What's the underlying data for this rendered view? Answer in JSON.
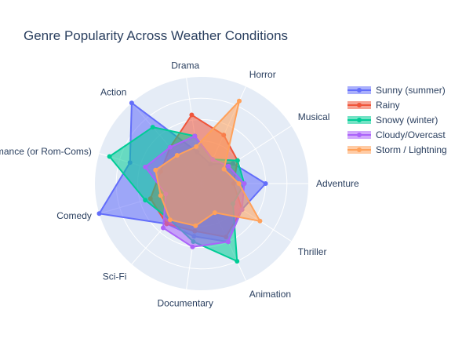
{
  "chart_data": {
    "type": "radar",
    "title": "Genre Popularity Across Weather Conditions",
    "categories": [
      "Adventure",
      "Musical",
      "Horror",
      "Drama",
      "Action",
      "Romance (or Rom-Coms)",
      "Comedy",
      "Sci-Fi",
      "Documentary",
      "Animation",
      "Thriller"
    ],
    "radial_range": [
      0,
      100
    ],
    "grid": true,
    "legend_position": "top-right",
    "series": [
      {
        "name": "Sunny (summer)",
        "color": "#636efa",
        "values": [
          60,
          35,
          20,
          30,
          100,
          70,
          100,
          50,
          50,
          60,
          45
        ]
      },
      {
        "name": "Rainy",
        "color": "#ef553b",
        "values": [
          30,
          40,
          50,
          65,
          45,
          40,
          50,
          50,
          45,
          55,
          45
        ]
      },
      {
        "name": "Snowy (winter)",
        "color": "#00cc96",
        "values": [
          40,
          40,
          25,
          45,
          70,
          90,
          55,
          45,
          55,
          80,
          35
        ]
      },
      {
        "name": "Cloudy/Overcast",
        "color": "#ab63fa",
        "values": [
          40,
          30,
          25,
          45,
          45,
          55,
          35,
          55,
          60,
          60,
          45
        ]
      },
      {
        "name": "Storm / Lightning",
        "color": "#ffa15a",
        "values": [
          35,
          25,
          85,
          35,
          35,
          45,
          40,
          45,
          40,
          30,
          65
        ]
      }
    ]
  }
}
